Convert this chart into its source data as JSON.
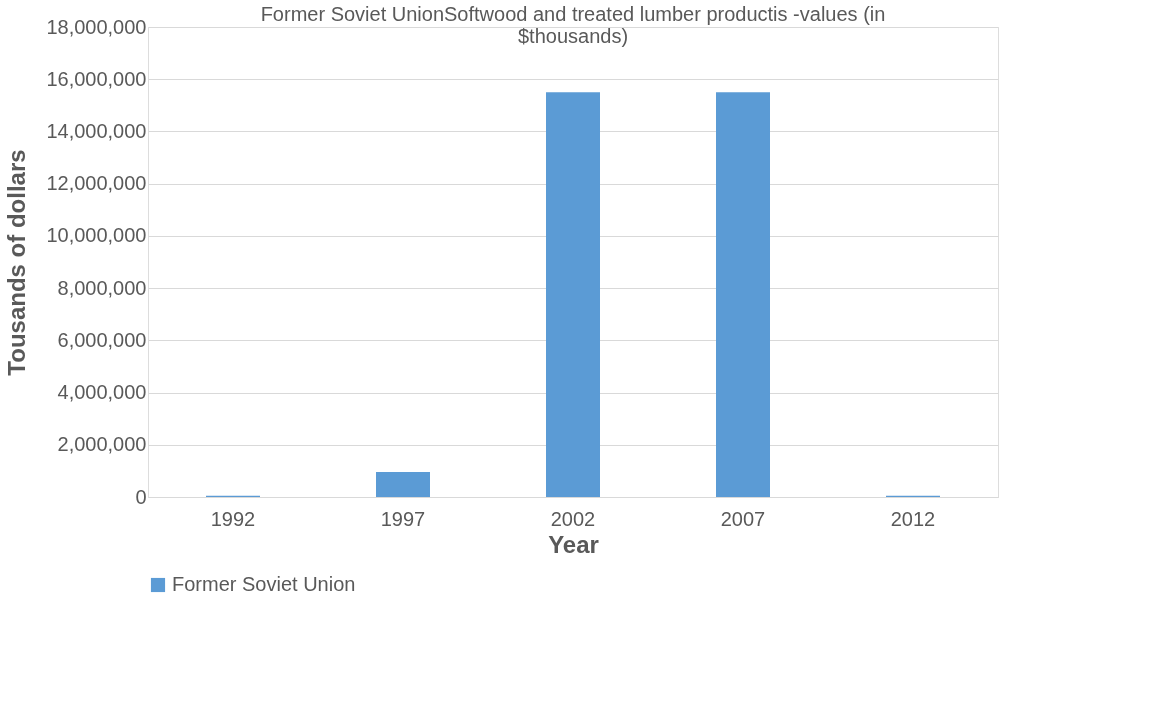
{
  "chart_data": {
    "type": "bar",
    "title": [
      "Former Soviet UnionSoftwood and treated lumber productis -values (in",
      "$thousands)"
    ],
    "xlabel": "Year",
    "ylabel": "Tousands of dollars",
    "categories": [
      "1992",
      "1997",
      "2002",
      "2007",
      "2012"
    ],
    "series": [
      {
        "name": "Former Soviet Union",
        "color": "#5b9bd5",
        "values": [
          50000,
          960000,
          15500000,
          15500000,
          50000
        ]
      }
    ],
    "ylim": [
      0,
      18000000
    ],
    "yticks": [
      0,
      {
        "value": 2000000,
        "label": "2,000,000"
      },
      {
        "value": 4000000,
        "label": "4,000,000"
      },
      {
        "value": 6000000,
        "label": "6,000,000"
      },
      {
        "value": 8000000,
        "label": "8,000,000"
      },
      {
        "value": 10000000,
        "label": "10,000,000"
      },
      {
        "value": 12000000,
        "label": "12,000,000"
      },
      {
        "value": 14000000,
        "label": "14,000,000"
      },
      {
        "value": 16000000,
        "label": "16,000,000"
      },
      {
        "value": 18000000,
        "label": "18,000,000"
      }
    ],
    "grid": "y",
    "legend": "bottom"
  }
}
